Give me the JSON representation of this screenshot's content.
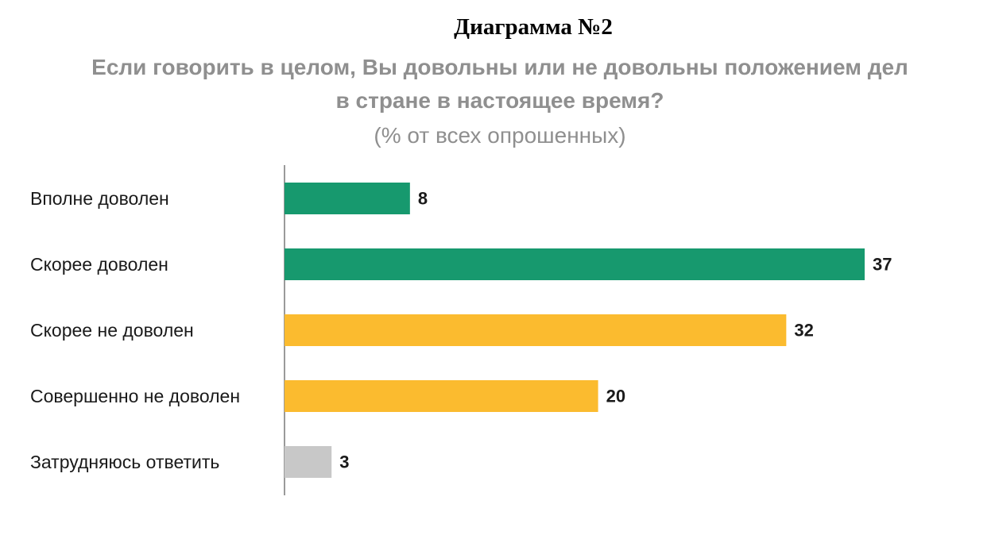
{
  "heading": "Диаграмма №2",
  "chart_data": {
    "type": "bar",
    "orientation": "horizontal",
    "title": "Если говорить в целом, Вы довольны или не довольны положением дел в стране в настоящее время?",
    "title_lines": [
      "Если говорить в целом, Вы довольны или не довольны положением дел",
      "в стране в настоящее время?"
    ],
    "subtitle": "(% от всех опрошенных)",
    "categories": [
      "Вполне доволен",
      "Скорее доволен",
      "Скорее не доволен",
      "Совершенно не доволен",
      "Затрудняюсь ответить"
    ],
    "values": [
      8,
      37,
      32,
      20,
      3
    ],
    "colors": [
      "#17996e",
      "#17996e",
      "#fbbb2f",
      "#fbbb2f",
      "#c8c8c8"
    ],
    "xlim": [
      0,
      37
    ],
    "grid": false,
    "legend": "none",
    "axis_color": "#9a9a9a"
  }
}
